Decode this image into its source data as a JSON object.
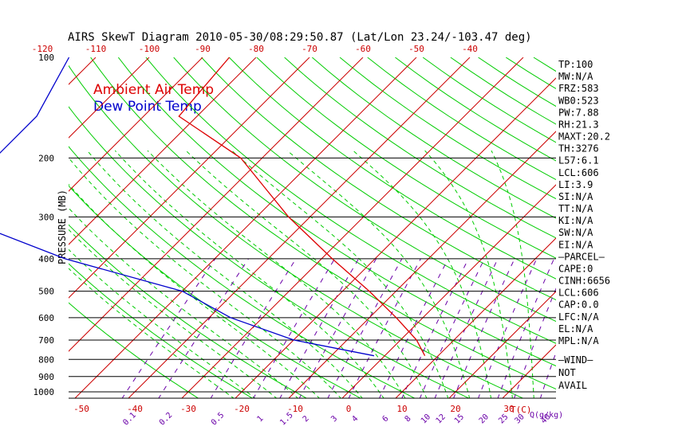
{
  "chart_data": {
    "type": "line",
    "title": "AIRS SkewT Diagram 2010-05-30/08:29:50.87 (Lat/Lon 23.24/-103.47 deg)",
    "ylabel": "PRESSURE (MB)",
    "pressure_ticks": [
      "100",
      "200",
      "300",
      "400",
      "500",
      "600",
      "700",
      "800",
      "900",
      "1000"
    ],
    "temp_ticks_top": [
      "-120",
      "-110",
      "-100",
      "-90",
      "-80",
      "-70",
      "-60",
      "-50",
      "-40"
    ],
    "temp_ticks_bottom": [
      "-50",
      "-40",
      "-30",
      "-20",
      "-10",
      "0",
      "10",
      "20",
      "30"
    ],
    "temp_unit_label": "T(C)",
    "mixing_ratio_labels": [
      "0.1",
      "0.2",
      "0.5",
      "1",
      "1.5",
      "2",
      "3",
      "4",
      "6",
      "8",
      "10",
      "12",
      "15",
      "20",
      "25",
      "30",
      "40"
    ],
    "mixing_ratio_unit": "Q(g/kg)",
    "legend": [
      {
        "name": "Ambient Air Temp",
        "color": "#dd0000"
      },
      {
        "name": "Dew Point Temp",
        "color": "#0000cc"
      }
    ],
    "series": [
      {
        "name": "Ambient Air Temp",
        "points": [
          {
            "p": 100,
            "t": -85.0
          },
          {
            "p": 150,
            "t": -83.4
          },
          {
            "p": 200,
            "t": -64.0
          },
          {
            "p": 250,
            "t": -53.0
          },
          {
            "p": 300,
            "t": -44.0
          },
          {
            "p": 400,
            "t": -28.0
          },
          {
            "p": 500,
            "t": -15.0
          },
          {
            "p": 600,
            "t": -5.0
          },
          {
            "p": 700,
            "t": 3.0
          },
          {
            "p": 780,
            "t": 7.5
          }
        ]
      },
      {
        "name": "Dew Point Temp",
        "points": [
          {
            "p": 100,
            "t": -115.0
          },
          {
            "p": 150,
            "t": -110.0
          },
          {
            "p": 200,
            "t": -110.0
          },
          {
            "p": 250,
            "t": -108.0
          },
          {
            "p": 300,
            "t": -106.0
          },
          {
            "p": 400,
            "t": -78.0
          },
          {
            "p": 500,
            "t": -50.0
          },
          {
            "p": 600,
            "t": -36.0
          },
          {
            "p": 700,
            "t": -20.0
          },
          {
            "p": 780,
            "t": -2.0
          }
        ]
      }
    ]
  },
  "indices": [
    "TP:100",
    "MW:N/A",
    "FRZ:583",
    "WB0:523",
    "PW:7.88",
    "RH:21.3",
    "MAXT:20.2",
    "TH:3276",
    "L57:6.1",
    "LCL:606",
    "LI:3.9",
    "SI:N/A",
    "TT:N/A",
    "KI:N/A",
    "SW:N/A",
    "EI:N/A",
    "—PARCEL—",
    "CAPE:0",
    "CINH:6656",
    "LCL:606",
    "CAP:0.0",
    "LFC:N/A",
    "EL:N/A",
    "MPL:N/A",
    "—WIND—",
    "NOT",
    "AVAIL"
  ],
  "colors": {
    "isotherm": "#cc0000",
    "dry_adiabat": "#00cc00",
    "moist_adiabat": "#00cc00",
    "mixing_ratio": "#6a00a8",
    "isobar": "#000000",
    "temp_line": "#dd0000",
    "dew_line": "#0000cc"
  }
}
